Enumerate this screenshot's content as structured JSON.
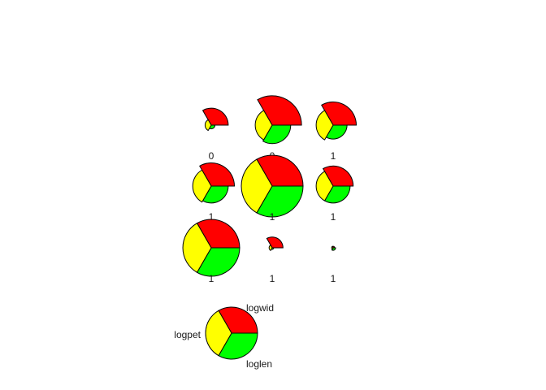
{
  "chart_data": {
    "type": "segment-star",
    "variables": [
      "logwid",
      "loglen",
      "logpet"
    ],
    "colors": {
      "logwid": "#ff0000",
      "loglen": "#00ff00",
      "logpet": "#ffff00"
    },
    "stars": [
      {
        "label": "0",
        "values": {
          "logwid": 0.55,
          "loglen": 0.12,
          "logpet": 0.2
        }
      },
      {
        "label": "0",
        "values": {
          "logwid": 0.95,
          "loglen": 0.6,
          "logpet": 0.55
        }
      },
      {
        "label": "1",
        "values": {
          "logwid": 0.75,
          "loglen": 0.45,
          "logpet": 0.55
        }
      },
      {
        "label": "1",
        "values": {
          "logwid": 0.75,
          "loglen": 0.55,
          "logpet": 0.6
        }
      },
      {
        "label": "1",
        "values": {
          "logwid": 1.0,
          "loglen": 1.0,
          "logpet": 1.0
        }
      },
      {
        "label": "1",
        "values": {
          "logwid": 0.65,
          "loglen": 0.55,
          "logpet": 0.55
        }
      },
      {
        "label": "1",
        "values": {
          "logwid": 0.92,
          "loglen": 0.92,
          "logpet": 0.92
        }
      },
      {
        "label": "1",
        "values": {
          "logwid": 0.35,
          "loglen": 0.05,
          "logpet": 0.1
        }
      },
      {
        "label": "1",
        "values": {
          "logwid": 0.05,
          "loglen": 0.08,
          "logpet": 0.05
        }
      }
    ],
    "key": {
      "labels": {
        "logwid": "logwid",
        "loglen": "loglen",
        "logpet": "logpet"
      }
    }
  }
}
